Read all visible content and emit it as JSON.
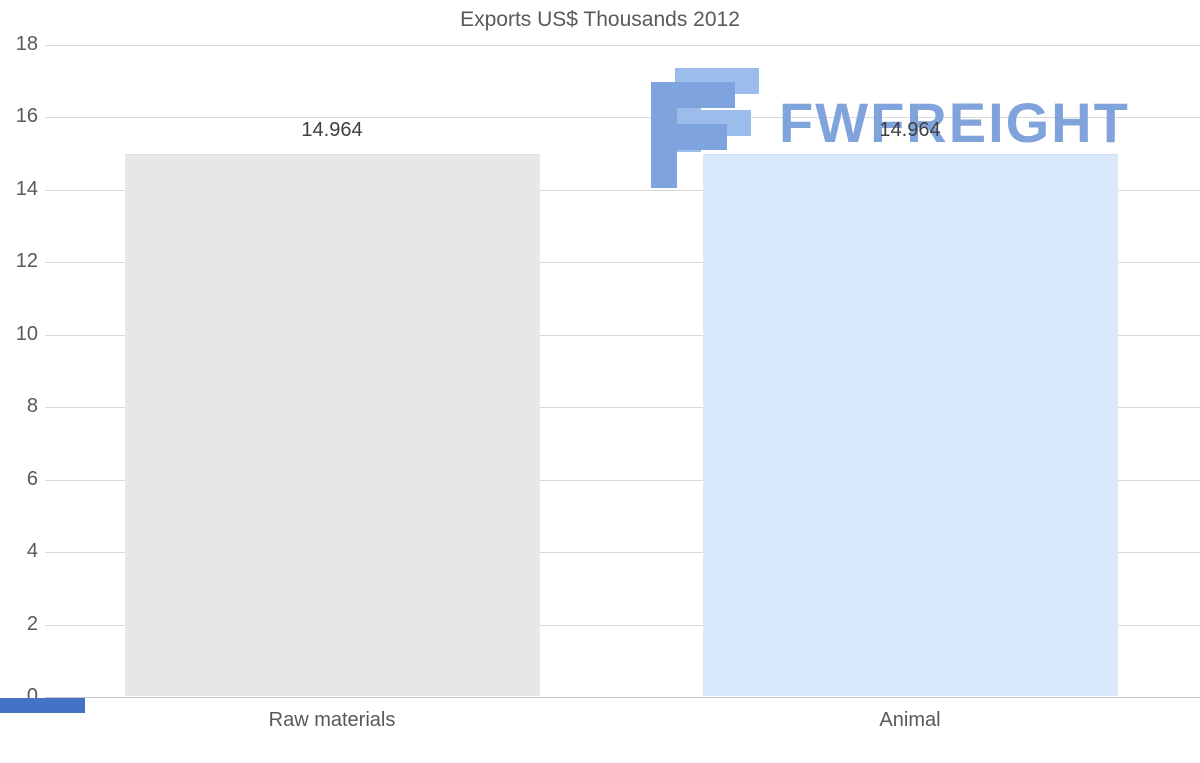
{
  "chart_data": {
    "type": "bar",
    "title": "Exports US$ Thousands 2012",
    "categories": [
      "Raw materials",
      "Animal"
    ],
    "values": [
      14.964,
      14.964
    ],
    "value_labels": [
      "14.964",
      "14.964"
    ],
    "ylim": [
      0,
      18
    ],
    "yticks": [
      0,
      2,
      4,
      6,
      8,
      10,
      12,
      14,
      16,
      18
    ],
    "grid": true,
    "legend": false,
    "bar_colors": [
      "#e7e7e7",
      "#d9e8fb"
    ],
    "bar_borders": [
      "#dedede",
      "#cde0f6"
    ]
  },
  "watermark": {
    "text": "FWFREIGHT",
    "icon": "fwfreight-logo",
    "color": "#80a3db"
  },
  "styles": {
    "title_color": "#595959",
    "tick_color": "#595959",
    "grid_color": "#d9d9d9",
    "value_label_color": "#3f3f3f",
    "accent_color": "#4472c4",
    "logo_light_blue": "#9cbcec",
    "logo_dark_blue": "#7ea3de"
  }
}
